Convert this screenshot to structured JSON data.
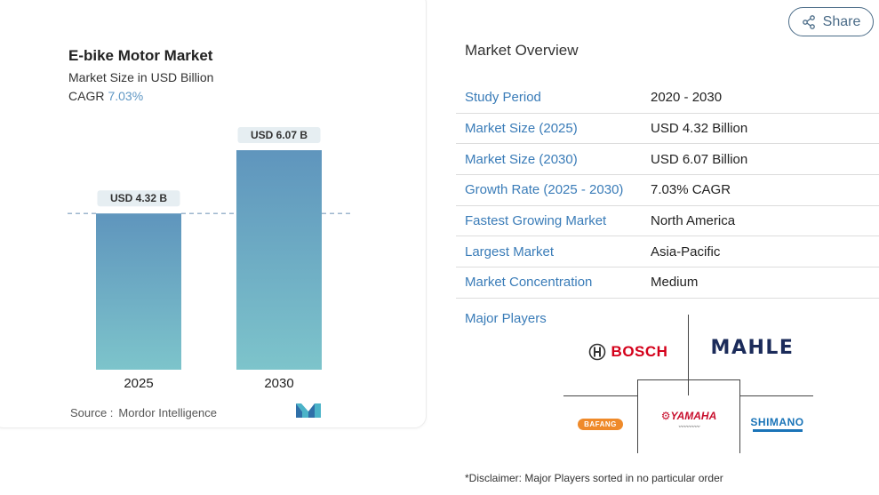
{
  "chart_data": {
    "type": "bar",
    "title": "E-bike Motor Market",
    "subtitle": "Market Size in USD Billion",
    "cagr_label": "CAGR",
    "cagr_value": "7.03%",
    "categories": [
      "2025",
      "2030"
    ],
    "values": [
      4.32,
      6.07
    ],
    "data_labels": [
      "USD 4.32 B",
      "USD 6.07 B"
    ],
    "reference_line": 4.32,
    "ylim": [
      0,
      6.07
    ],
    "grid": false,
    "colors": {
      "bar_top": "#5f95bd",
      "bar_bottom": "#7dc4cb",
      "label_bg": "#e6eef2",
      "ref_line": "#7f9fbe"
    }
  },
  "source": {
    "label": "Source :",
    "value": "Mordor Intelligence",
    "logo_icon": "mordor-intelligence-logo"
  },
  "share": {
    "label": "Share",
    "icon": "share-icon"
  },
  "overview": {
    "title": "Market Overview",
    "rows": [
      {
        "key": "Study Period",
        "value": "2020 - 2030"
      },
      {
        "key": "Market Size (2025)",
        "value": "USD 4.32 Billion"
      },
      {
        "key": "Market Size (2030)",
        "value": "USD 6.07 Billion"
      },
      {
        "key": "Growth Rate (2025 - 2030)",
        "value": "7.03% CAGR"
      },
      {
        "key": "Fastest Growing Market",
        "value": "North America"
      },
      {
        "key": "Largest Market",
        "value": "Asia-Pacific"
      },
      {
        "key": "Market Concentration",
        "value": "Medium"
      }
    ]
  },
  "major_players": {
    "title": "Major Players",
    "logos": [
      "BOSCH",
      "MAHLE",
      "BAFANG",
      "YAMAHA",
      "SHIMANO"
    ]
  },
  "disclaimer": "*Disclaimer: Major Players sorted in no particular order"
}
